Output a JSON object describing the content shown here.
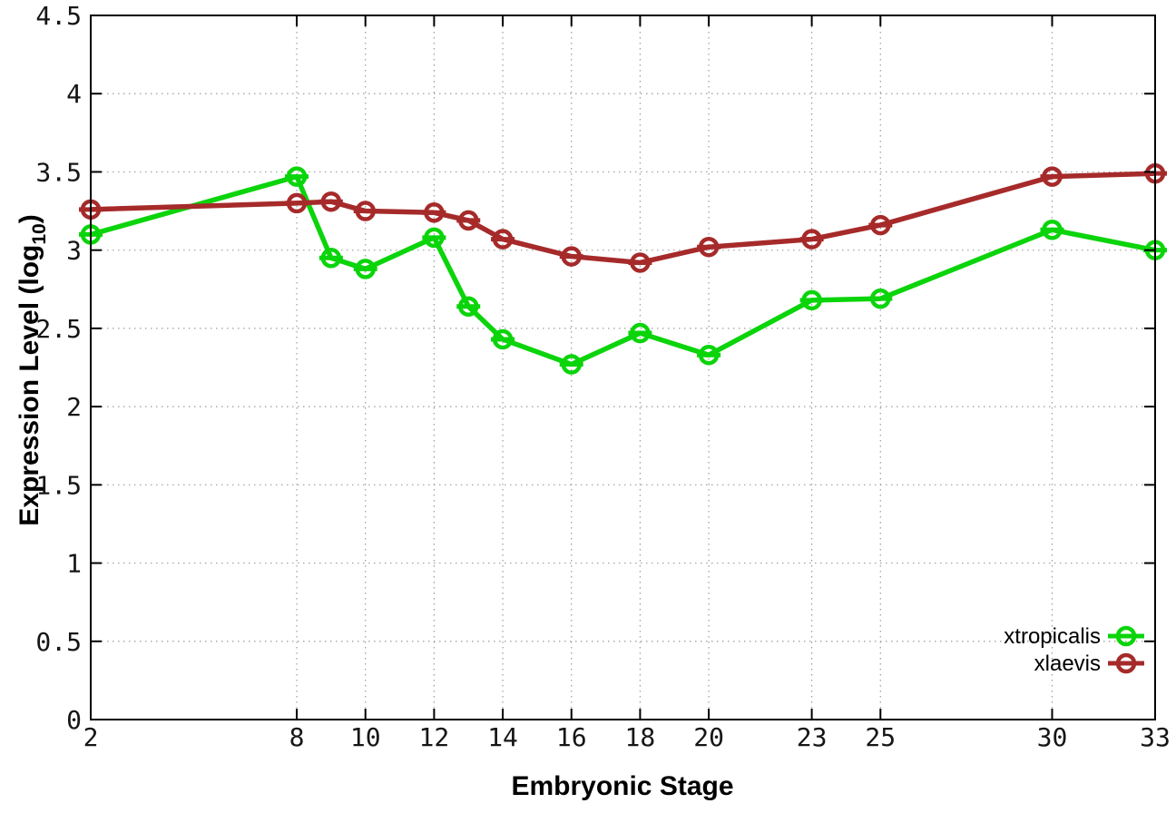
{
  "figure": {
    "background": "#ffffff"
  },
  "chart_data": {
    "type": "line",
    "title": "",
    "xlabel": "Embryonic Stage",
    "ylabel": "Expression Level (log10)",
    "ylabel_parts": {
      "main": "Expression Level (log",
      "sub": "10",
      "close": ")"
    },
    "x": [
      2,
      8,
      9,
      10,
      12,
      13,
      14,
      16,
      18,
      20,
      23,
      25,
      30,
      33
    ],
    "series": [
      {
        "name": "xtropicalis",
        "color": "#0bd40b",
        "values": [
          3.1,
          3.47,
          2.95,
          2.88,
          3.08,
          2.64,
          2.43,
          2.27,
          2.47,
          2.33,
          2.68,
          2.69,
          3.13,
          3.0
        ]
      },
      {
        "name": "xlaevis",
        "color": "#a62a2a",
        "values": [
          3.26,
          3.3,
          3.31,
          3.25,
          3.24,
          3.19,
          3.07,
          2.96,
          2.92,
          3.02,
          3.07,
          3.16,
          3.47,
          3.49
        ]
      }
    ],
    "xticks": {
      "values": [
        2,
        8,
        10,
        12,
        14,
        16,
        18,
        20,
        23,
        25,
        30,
        33
      ],
      "labels": [
        "2",
        "8",
        "10",
        "12",
        "14",
        "16",
        "18",
        "20",
        "23",
        "25",
        "30",
        "33"
      ]
    },
    "yticks": {
      "values": [
        0,
        0.5,
        1,
        1.5,
        2,
        2.5,
        3,
        3.5,
        4,
        4.5
      ],
      "labels": [
        "0",
        "0.5",
        "1",
        "1.5",
        "2",
        "2.5",
        "3",
        "3.5",
        "4",
        "4.5"
      ]
    },
    "xlim": [
      2,
      33
    ],
    "ylim": [
      0,
      4.5
    ],
    "grid": true,
    "grid_color": "#9c9c9c",
    "border_color": "#000000",
    "text_color": "#161616",
    "marker": "open-circle-with-cap",
    "legend_position": "bottom-right"
  }
}
